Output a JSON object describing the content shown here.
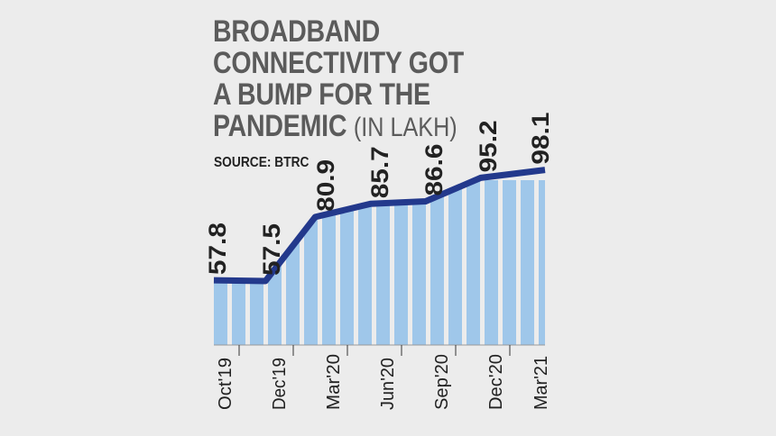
{
  "header": {
    "title_lines": [
      "BROADBAND",
      "CONNECTIVITY GOT",
      "A BUMP FOR THE",
      "PANDEMIC"
    ],
    "unit": "(IN LAKH)",
    "source": "SOURCE: BTRC"
  },
  "colors": {
    "line": "#23398c",
    "stripe": "#9fc7ea",
    "background": "#ececec",
    "label": "#222222"
  },
  "chart_data": {
    "type": "area",
    "title": "BROADBAND CONNECTIVITY GOT A BUMP FOR THE PANDEMIC",
    "unit": "(IN LAKH)",
    "source": "SOURCE: BTRC",
    "categories": [
      "Oct'19",
      "Dec'19",
      "Mar'20",
      "Jun'20",
      "Sep'20",
      "Dec'20",
      "Mar'21"
    ],
    "values": [
      57.8,
      57.5,
      80.9,
      85.7,
      86.6,
      95.2,
      98.1
    ],
    "value_labels": [
      "57.8",
      "57.5",
      "80.9",
      "85.7",
      "86.6",
      "95.2",
      "98.1"
    ],
    "grid": false,
    "legend": "none"
  }
}
